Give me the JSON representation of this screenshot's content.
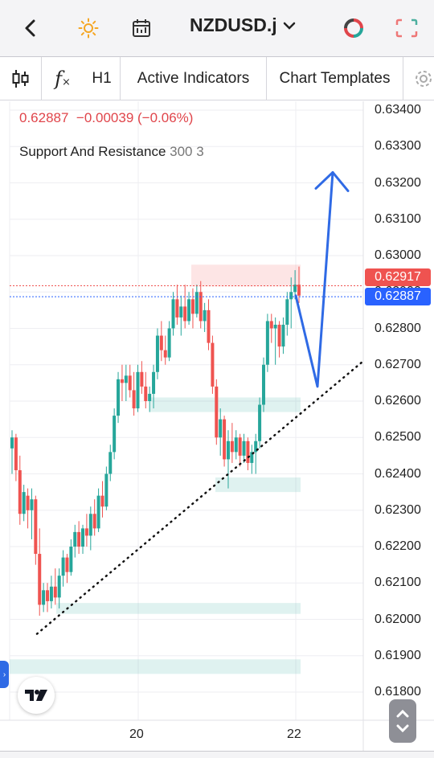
{
  "header": {
    "back_icon": "chevron-left-icon",
    "theme_icon": "sun-icon",
    "calendar_icon": "calendar-icon",
    "symbol": "NZDUSD.j",
    "symbol_dropdown_icon": "chevron-down-icon",
    "trade_icon": "pie-ring-icon",
    "fullscreen_icon": "expand-corners-icon"
  },
  "toolbar": {
    "chart_type_icon": "candlestick-icon",
    "indicator_icon": "fx-icon",
    "timeframe": "H1",
    "active_indicators": "Active Indicators",
    "chart_templates": "Chart Templates",
    "settings_icon": "gear-icon"
  },
  "legend": {
    "price": "0.62887",
    "change": "−0.00039 (−0.06%)",
    "indicator_name": "Support And Resistance",
    "indicator_params": "300 3"
  },
  "price_tags": {
    "ask": "0.62917",
    "bid": "0.62887",
    "ask_color": "#ef5350",
    "bid_color": "#2962ff"
  },
  "chart_data": {
    "type": "candlestick",
    "y_ticks": [
      "0.63400",
      "0.63300",
      "0.63200",
      "0.63100",
      "0.63000",
      "0.62900",
      "0.62800",
      "0.62700",
      "0.62600",
      "0.62500",
      "0.62400",
      "0.62300",
      "0.62200",
      "0.62100",
      "0.62000",
      "0.61900",
      "0.61800"
    ],
    "x_ticks": [
      "20",
      "22"
    ],
    "ylim": [
      0.6176,
      0.6342
    ],
    "candles": [
      [
        0.6247,
        0.6252,
        0.624,
        0.625
      ],
      [
        0.625,
        0.6251,
        0.6238,
        0.6241
      ],
      [
        0.6241,
        0.6245,
        0.6226,
        0.6229
      ],
      [
        0.6229,
        0.6237,
        0.6227,
        0.6235
      ],
      [
        0.6234,
        0.6236,
        0.6225,
        0.623
      ],
      [
        0.623,
        0.6236,
        0.6222,
        0.6233
      ],
      [
        0.6233,
        0.6234,
        0.6215,
        0.6218
      ],
      [
        0.6218,
        0.6225,
        0.6201,
        0.6204
      ],
      [
        0.6204,
        0.621,
        0.6202,
        0.6208
      ],
      [
        0.6208,
        0.621,
        0.6202,
        0.6205
      ],
      [
        0.6205,
        0.6212,
        0.6203,
        0.6209
      ],
      [
        0.6209,
        0.6214,
        0.6204,
        0.6206
      ],
      [
        0.6206,
        0.6214,
        0.6203,
        0.6212
      ],
      [
        0.6212,
        0.6219,
        0.6209,
        0.6217
      ],
      [
        0.6217,
        0.6218,
        0.621,
        0.6213
      ],
      [
        0.6213,
        0.6222,
        0.6212,
        0.622
      ],
      [
        0.622,
        0.6226,
        0.6217,
        0.6224
      ],
      [
        0.6224,
        0.6227,
        0.6218,
        0.622
      ],
      [
        0.622,
        0.6226,
        0.6218,
        0.6225
      ],
      [
        0.6225,
        0.6229,
        0.622,
        0.6223
      ],
      [
        0.6223,
        0.6231,
        0.6219,
        0.6229
      ],
      [
        0.6229,
        0.6233,
        0.6223,
        0.6225
      ],
      [
        0.6225,
        0.6236,
        0.6224,
        0.6234
      ],
      [
        0.6234,
        0.6238,
        0.6228,
        0.6231
      ],
      [
        0.6231,
        0.6242,
        0.623,
        0.624
      ],
      [
        0.624,
        0.6248,
        0.6238,
        0.6246
      ],
      [
        0.6246,
        0.6258,
        0.6244,
        0.6256
      ],
      [
        0.6256,
        0.6268,
        0.6254,
        0.6266
      ],
      [
        0.6266,
        0.627,
        0.626,
        0.6265
      ],
      [
        0.6265,
        0.627,
        0.626,
        0.6267
      ],
      [
        0.6267,
        0.627,
        0.6261,
        0.6263
      ],
      [
        0.6263,
        0.6268,
        0.6256,
        0.6258
      ],
      [
        0.6258,
        0.627,
        0.6257,
        0.6268
      ],
      [
        0.6268,
        0.6271,
        0.6262,
        0.6264
      ],
      [
        0.6264,
        0.6268,
        0.6258,
        0.626
      ],
      [
        0.626,
        0.6264,
        0.6257,
        0.6262
      ],
      [
        0.6262,
        0.627,
        0.6258,
        0.6268
      ],
      [
        0.6268,
        0.628,
        0.6266,
        0.6278
      ],
      [
        0.6278,
        0.6282,
        0.6271,
        0.6274
      ],
      [
        0.6274,
        0.6278,
        0.627,
        0.6272
      ],
      [
        0.6272,
        0.6282,
        0.6271,
        0.628
      ],
      [
        0.628,
        0.629,
        0.6278,
        0.6288
      ],
      [
        0.6288,
        0.6292,
        0.6281,
        0.6283
      ],
      [
        0.6283,
        0.6289,
        0.6278,
        0.6286
      ],
      [
        0.6286,
        0.6292,
        0.628,
        0.6282
      ],
      [
        0.6282,
        0.629,
        0.6281,
        0.6288
      ],
      [
        0.6288,
        0.6291,
        0.628,
        0.6284
      ],
      [
        0.6284,
        0.6292,
        0.6283,
        0.629
      ],
      [
        0.629,
        0.6293,
        0.628,
        0.6282
      ],
      [
        0.6282,
        0.6287,
        0.6279,
        0.6285
      ],
      [
        0.6285,
        0.6288,
        0.6274,
        0.6276
      ],
      [
        0.6276,
        0.6278,
        0.6262,
        0.6264
      ],
      [
        0.6264,
        0.6266,
        0.6248,
        0.625
      ],
      [
        0.625,
        0.6258,
        0.6245,
        0.6255
      ],
      [
        0.6255,
        0.6256,
        0.6242,
        0.6244
      ],
      [
        0.6244,
        0.6252,
        0.6236,
        0.6249
      ],
      [
        0.6249,
        0.6254,
        0.6243,
        0.6246
      ],
      [
        0.6246,
        0.6252,
        0.6244,
        0.625
      ],
      [
        0.625,
        0.6251,
        0.6242,
        0.6245
      ],
      [
        0.6245,
        0.6251,
        0.6243,
        0.6249
      ],
      [
        0.6249,
        0.625,
        0.6241,
        0.6243
      ],
      [
        0.6243,
        0.6248,
        0.624,
        0.6246
      ],
      [
        0.6246,
        0.6251,
        0.624,
        0.6249
      ],
      [
        0.6249,
        0.6261,
        0.6247,
        0.6259
      ],
      [
        0.6259,
        0.6272,
        0.6257,
        0.627
      ],
      [
        0.627,
        0.6284,
        0.6268,
        0.6282
      ],
      [
        0.6282,
        0.6284,
        0.6276,
        0.628
      ],
      [
        0.628,
        0.6283,
        0.627,
        0.6281
      ],
      [
        0.6281,
        0.6282,
        0.6272,
        0.6275
      ],
      [
        0.6275,
        0.6283,
        0.6273,
        0.6281
      ],
      [
        0.6281,
        0.629,
        0.6278,
        0.6288
      ],
      [
        0.6288,
        0.6294,
        0.628,
        0.629
      ],
      [
        0.629,
        0.6296,
        0.6288,
        0.6292
      ],
      [
        0.6292,
        0.6297,
        0.6287,
        0.6289
      ]
    ],
    "up_color": "#26a69a",
    "down_color": "#ef5350",
    "zones": [
      {
        "from": 0.62915,
        "to": 0.62975,
        "kind": "resistance"
      },
      {
        "from": 0.6257,
        "to": 0.6261,
        "kind": "support"
      },
      {
        "from": 0.6235,
        "to": 0.6239,
        "kind": "support"
      },
      {
        "from": 0.62015,
        "to": 0.62045,
        "kind": "support"
      },
      {
        "from": 0.6185,
        "to": 0.6189,
        "kind": "support"
      }
    ],
    "trendline": {
      "from": [
        0,
        0.6196
      ],
      "to": [
        1,
        0.6271
      ]
    },
    "projection": {
      "points": [
        [
          0.6289
        ],
        [
          0.6264
        ],
        [
          0.6322
        ]
      ]
    }
  },
  "misc": {
    "tv_logo": "tradingview-logo",
    "side_tab_icon": "chevron-right-icon",
    "scroll_icon": "up-down-arrows-icon"
  }
}
